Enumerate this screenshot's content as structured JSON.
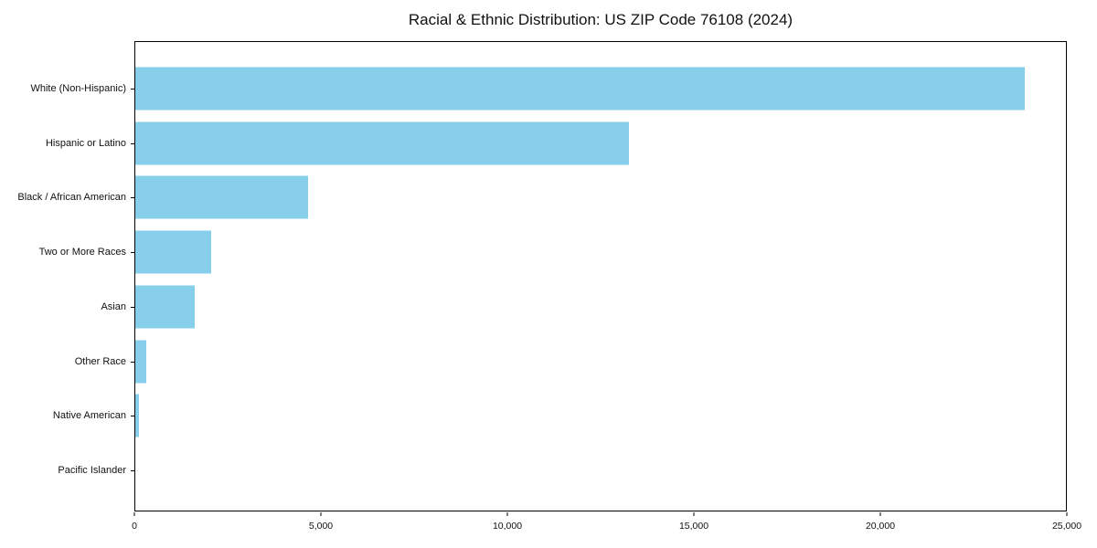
{
  "title": "Racial & Ethnic Distribution: US ZIP Code 76108 (2024)",
  "colors": {
    "bar": "#87CEEB",
    "axis": "#000000",
    "background": "#FFFFFF",
    "text": "#111111"
  },
  "chart_data": {
    "type": "bar",
    "orientation": "horizontal",
    "title": "Racial & Ethnic Distribution: US ZIP Code 76108 (2024)",
    "categories": [
      "White (Non-Hispanic)",
      "Hispanic or Latino",
      "Black / African American",
      "Two or More Races",
      "Asian",
      "Other Race",
      "Native American",
      "Pacific Islander"
    ],
    "values": [
      23900,
      13250,
      4650,
      2050,
      1600,
      290,
      110,
      0
    ],
    "xlabel": "",
    "ylabel": "",
    "xlim": [
      0,
      25000
    ],
    "xticks": [
      0,
      5000,
      10000,
      15000,
      20000,
      25000
    ],
    "xtick_labels": [
      "0",
      "5,000",
      "10,000",
      "15,000",
      "20,000",
      "25,000"
    ],
    "grid": false,
    "legend_position": "none",
    "bar_color": "#87CEEB"
  }
}
